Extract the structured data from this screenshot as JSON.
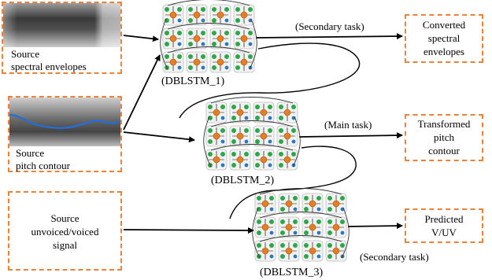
{
  "inputs": {
    "spectral": {
      "line1": "Source",
      "line2": "spectral envelopes"
    },
    "pitch": {
      "line1": "Source",
      "line2": "pitch contour"
    },
    "uv": {
      "line1": "Source",
      "line2": "unvoiced/voiced",
      "line3": "signal"
    }
  },
  "networks": [
    {
      "label": "(DBLSTM_1)"
    },
    {
      "label": "(DBLSTM_2)"
    },
    {
      "label": "(DBLSTM_3)"
    }
  ],
  "tasks": {
    "t1": "(Secondary task)",
    "t2": "(Main task)",
    "t3": "(Secondary task)"
  },
  "outputs": {
    "o1": {
      "line1": "Converted",
      "line2": "spectral",
      "line3": "envelopes"
    },
    "o2": {
      "line1": "Transformed",
      "line2": "pitch",
      "line3": "contour"
    },
    "o3": {
      "line1": "Predicted",
      "line2": "V/UV"
    }
  },
  "colors": {
    "box_border": "#e9833a",
    "pitch_curve": "#1f6fe0",
    "node_green": "#2aa84a",
    "node_orange": "#e67e22",
    "node_blue": "#2b78c2"
  }
}
